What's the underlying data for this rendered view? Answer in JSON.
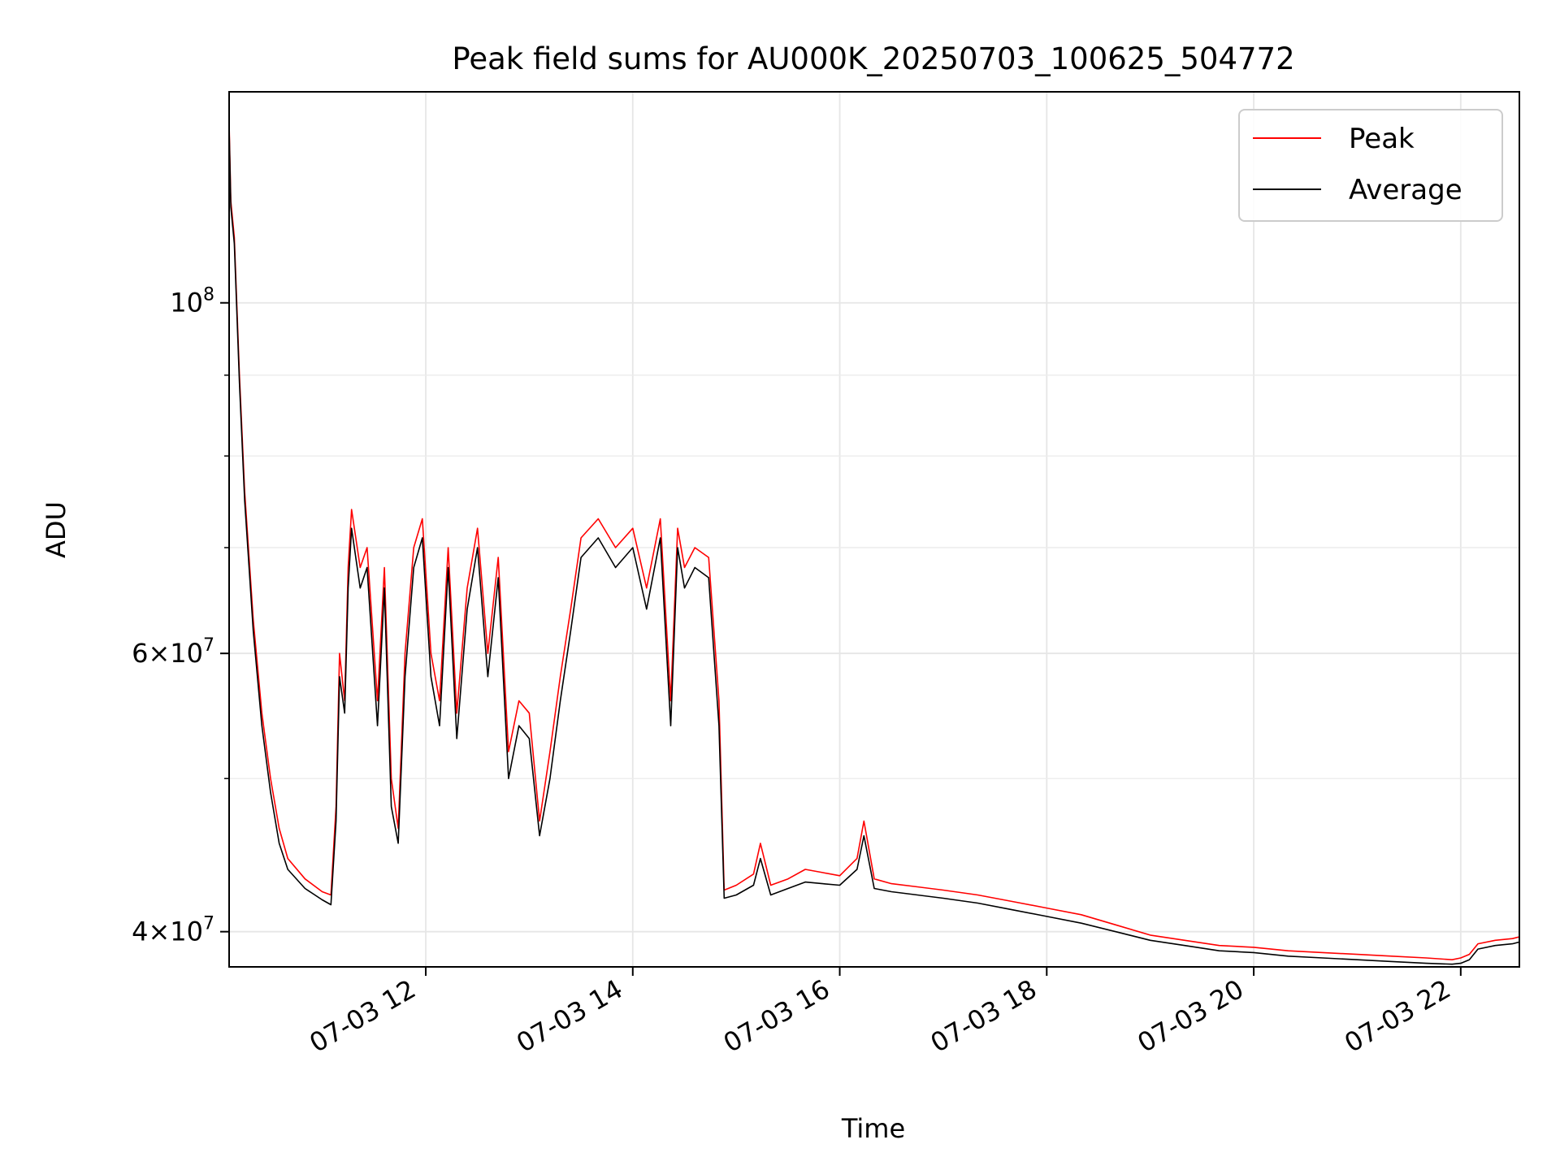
{
  "chart_data": {
    "type": "line",
    "title": "Peak field sums for AU000K_20250703_100625_504772",
    "xlabel": "Time",
    "ylabel": "ADU",
    "y_scale": "log",
    "ylim": [
      38000000,
      136000000
    ],
    "xlim": [
      "2025-07-03 10:06",
      "2025-07-03 22:34"
    ],
    "grid": true,
    "legend": "top-right",
    "x_ticks": [
      {
        "t": "2025-07-03 12:00",
        "label": "07-03 12"
      },
      {
        "t": "2025-07-03 14:00",
        "label": "07-03 14"
      },
      {
        "t": "2025-07-03 16:00",
        "label": "07-03 16"
      },
      {
        "t": "2025-07-03 18:00",
        "label": "07-03 18"
      },
      {
        "t": "2025-07-03 20:00",
        "label": "07-03 20"
      },
      {
        "t": "2025-07-03 22:00",
        "label": "07-03 22"
      }
    ],
    "y_ticks": [
      {
        "value": 40000000,
        "mant": "4",
        "exp": "7"
      },
      {
        "value": 60000000,
        "mant": "6",
        "exp": "7"
      },
      {
        "value": 100000000,
        "mant": "",
        "exp": "8"
      }
    ],
    "y_minor_ticks": [
      50000000,
      70000000,
      80000000,
      90000000
    ],
    "series": [
      {
        "name": "Peak",
        "color": "#ff0000",
        "points": [
          [
            "2025-07-03 10:06",
            130000000
          ],
          [
            "2025-07-03 10:07",
            116000000
          ],
          [
            "2025-07-03 10:09",
            110000000
          ],
          [
            "2025-07-03 10:12",
            90000000
          ],
          [
            "2025-07-03 10:15",
            76000000
          ],
          [
            "2025-07-03 10:20",
            63000000
          ],
          [
            "2025-07-03 10:25",
            55000000
          ],
          [
            "2025-07-03 10:30",
            50000000
          ],
          [
            "2025-07-03 10:35",
            46500000
          ],
          [
            "2025-07-03 10:40",
            44500000
          ],
          [
            "2025-07-03 10:50",
            43200000
          ],
          [
            "2025-07-03 11:00",
            42400000
          ],
          [
            "2025-07-03 11:05",
            42200000
          ],
          [
            "2025-07-03 11:08",
            48000000
          ],
          [
            "2025-07-03 11:10",
            60000000
          ],
          [
            "2025-07-03 11:13",
            56000000
          ],
          [
            "2025-07-03 11:15",
            68000000
          ],
          [
            "2025-07-03 11:17",
            74000000
          ],
          [
            "2025-07-03 11:22",
            68000000
          ],
          [
            "2025-07-03 11:26",
            70000000
          ],
          [
            "2025-07-03 11:32",
            56000000
          ],
          [
            "2025-07-03 11:36",
            68000000
          ],
          [
            "2025-07-03 11:40",
            50000000
          ],
          [
            "2025-07-03 11:44",
            46500000
          ],
          [
            "2025-07-03 11:48",
            60000000
          ],
          [
            "2025-07-03 11:53",
            70000000
          ],
          [
            "2025-07-03 11:58",
            73000000
          ],
          [
            "2025-07-03 12:03",
            60000000
          ],
          [
            "2025-07-03 12:08",
            56000000
          ],
          [
            "2025-07-03 12:13",
            70000000
          ],
          [
            "2025-07-03 12:18",
            55000000
          ],
          [
            "2025-07-03 12:24",
            66000000
          ],
          [
            "2025-07-03 12:30",
            72000000
          ],
          [
            "2025-07-03 12:36",
            60000000
          ],
          [
            "2025-07-03 12:42",
            69000000
          ],
          [
            "2025-07-03 12:48",
            52000000
          ],
          [
            "2025-07-03 12:54",
            56000000
          ],
          [
            "2025-07-03 13:00",
            55000000
          ],
          [
            "2025-07-03 13:06",
            47000000
          ],
          [
            "2025-07-03 13:12",
            52000000
          ],
          [
            "2025-07-03 13:18",
            58000000
          ],
          [
            "2025-07-03 13:24",
            64000000
          ],
          [
            "2025-07-03 13:30",
            71000000
          ],
          [
            "2025-07-03 13:40",
            73000000
          ],
          [
            "2025-07-03 13:50",
            70000000
          ],
          [
            "2025-07-03 14:00",
            72000000
          ],
          [
            "2025-07-03 14:08",
            66000000
          ],
          [
            "2025-07-03 14:16",
            73000000
          ],
          [
            "2025-07-03 14:22",
            56000000
          ],
          [
            "2025-07-03 14:26",
            72000000
          ],
          [
            "2025-07-03 14:30",
            68000000
          ],
          [
            "2025-07-03 14:36",
            70000000
          ],
          [
            "2025-07-03 14:44",
            69000000
          ],
          [
            "2025-07-03 14:50",
            56000000
          ],
          [
            "2025-07-03 14:53",
            42500000
          ],
          [
            "2025-07-03 15:00",
            42800000
          ],
          [
            "2025-07-03 15:10",
            43500000
          ],
          [
            "2025-07-03 15:14",
            45500000
          ],
          [
            "2025-07-03 15:20",
            42800000
          ],
          [
            "2025-07-03 15:30",
            43200000
          ],
          [
            "2025-07-03 15:40",
            43800000
          ],
          [
            "2025-07-03 15:50",
            43600000
          ],
          [
            "2025-07-03 16:00",
            43400000
          ],
          [
            "2025-07-03 16:10",
            44500000
          ],
          [
            "2025-07-03 16:14",
            47000000
          ],
          [
            "2025-07-03 16:20",
            43200000
          ],
          [
            "2025-07-03 16:30",
            42900000
          ],
          [
            "2025-07-03 16:45",
            42700000
          ],
          [
            "2025-07-03 17:00",
            42500000
          ],
          [
            "2025-07-03 17:20",
            42200000
          ],
          [
            "2025-07-03 17:40",
            41800000
          ],
          [
            "2025-07-03 18:00",
            41400000
          ],
          [
            "2025-07-03 18:20",
            41000000
          ],
          [
            "2025-07-03 18:40",
            40400000
          ],
          [
            "2025-07-03 19:00",
            39800000
          ],
          [
            "2025-07-03 19:20",
            39500000
          ],
          [
            "2025-07-03 19:40",
            39200000
          ],
          [
            "2025-07-03 20:00",
            39100000
          ],
          [
            "2025-07-03 20:20",
            38900000
          ],
          [
            "2025-07-03 20:40",
            38800000
          ],
          [
            "2025-07-03 21:00",
            38700000
          ],
          [
            "2025-07-03 21:20",
            38600000
          ],
          [
            "2025-07-03 21:40",
            38500000
          ],
          [
            "2025-07-03 21:55",
            38400000
          ],
          [
            "2025-07-03 22:00",
            38500000
          ],
          [
            "2025-07-03 22:05",
            38700000
          ],
          [
            "2025-07-03 22:10",
            39300000
          ],
          [
            "2025-07-03 22:20",
            39500000
          ],
          [
            "2025-07-03 22:30",
            39600000
          ],
          [
            "2025-07-03 22:34",
            39700000
          ]
        ]
      },
      {
        "name": "Average",
        "color": "#000000",
        "points": [
          [
            "2025-07-03 10:06",
            129000000
          ],
          [
            "2025-07-03 10:07",
            115000000
          ],
          [
            "2025-07-03 10:09",
            109000000
          ],
          [
            "2025-07-03 10:12",
            89000000
          ],
          [
            "2025-07-03 10:15",
            75000000
          ],
          [
            "2025-07-03 10:20",
            62000000
          ],
          [
            "2025-07-03 10:25",
            54000000
          ],
          [
            "2025-07-03 10:30",
            49000000
          ],
          [
            "2025-07-03 10:35",
            45500000
          ],
          [
            "2025-07-03 10:40",
            43800000
          ],
          [
            "2025-07-03 10:50",
            42600000
          ],
          [
            "2025-07-03 11:00",
            41900000
          ],
          [
            "2025-07-03 11:05",
            41600000
          ],
          [
            "2025-07-03 11:08",
            47000000
          ],
          [
            "2025-07-03 11:10",
            58000000
          ],
          [
            "2025-07-03 11:13",
            55000000
          ],
          [
            "2025-07-03 11:15",
            66000000
          ],
          [
            "2025-07-03 11:17",
            72000000
          ],
          [
            "2025-07-03 11:22",
            66000000
          ],
          [
            "2025-07-03 11:26",
            68000000
          ],
          [
            "2025-07-03 11:32",
            54000000
          ],
          [
            "2025-07-03 11:36",
            66000000
          ],
          [
            "2025-07-03 11:40",
            48000000
          ],
          [
            "2025-07-03 11:44",
            45500000
          ],
          [
            "2025-07-03 11:48",
            58000000
          ],
          [
            "2025-07-03 11:53",
            68000000
          ],
          [
            "2025-07-03 11:58",
            71000000
          ],
          [
            "2025-07-03 12:03",
            58000000
          ],
          [
            "2025-07-03 12:08",
            54000000
          ],
          [
            "2025-07-03 12:13",
            68000000
          ],
          [
            "2025-07-03 12:18",
            53000000
          ],
          [
            "2025-07-03 12:24",
            64000000
          ],
          [
            "2025-07-03 12:30",
            70000000
          ],
          [
            "2025-07-03 12:36",
            58000000
          ],
          [
            "2025-07-03 12:42",
            67000000
          ],
          [
            "2025-07-03 12:48",
            50000000
          ],
          [
            "2025-07-03 12:54",
            54000000
          ],
          [
            "2025-07-03 13:00",
            53000000
          ],
          [
            "2025-07-03 13:06",
            46000000
          ],
          [
            "2025-07-03 13:12",
            50000000
          ],
          [
            "2025-07-03 13:18",
            56000000
          ],
          [
            "2025-07-03 13:24",
            62000000
          ],
          [
            "2025-07-03 13:30",
            69000000
          ],
          [
            "2025-07-03 13:40",
            71000000
          ],
          [
            "2025-07-03 13:50",
            68000000
          ],
          [
            "2025-07-03 14:00",
            70000000
          ],
          [
            "2025-07-03 14:08",
            64000000
          ],
          [
            "2025-07-03 14:16",
            71000000
          ],
          [
            "2025-07-03 14:22",
            54000000
          ],
          [
            "2025-07-03 14:26",
            70000000
          ],
          [
            "2025-07-03 14:30",
            66000000
          ],
          [
            "2025-07-03 14:36",
            68000000
          ],
          [
            "2025-07-03 14:44",
            67000000
          ],
          [
            "2025-07-03 14:50",
            54000000
          ],
          [
            "2025-07-03 14:53",
            42000000
          ],
          [
            "2025-07-03 15:00",
            42200000
          ],
          [
            "2025-07-03 15:10",
            42800000
          ],
          [
            "2025-07-03 15:14",
            44500000
          ],
          [
            "2025-07-03 15:20",
            42200000
          ],
          [
            "2025-07-03 15:30",
            42600000
          ],
          [
            "2025-07-03 15:40",
            43000000
          ],
          [
            "2025-07-03 15:50",
            42900000
          ],
          [
            "2025-07-03 16:00",
            42800000
          ],
          [
            "2025-07-03 16:10",
            43800000
          ],
          [
            "2025-07-03 16:14",
            46000000
          ],
          [
            "2025-07-03 16:20",
            42600000
          ],
          [
            "2025-07-03 16:30",
            42400000
          ],
          [
            "2025-07-03 16:45",
            42200000
          ],
          [
            "2025-07-03 17:00",
            42000000
          ],
          [
            "2025-07-03 17:20",
            41700000
          ],
          [
            "2025-07-03 17:40",
            41300000
          ],
          [
            "2025-07-03 18:00",
            40900000
          ],
          [
            "2025-07-03 18:20",
            40500000
          ],
          [
            "2025-07-03 18:40",
            40000000
          ],
          [
            "2025-07-03 19:00",
            39500000
          ],
          [
            "2025-07-03 19:20",
            39200000
          ],
          [
            "2025-07-03 19:40",
            38900000
          ],
          [
            "2025-07-03 20:00",
            38800000
          ],
          [
            "2025-07-03 20:20",
            38600000
          ],
          [
            "2025-07-03 20:40",
            38500000
          ],
          [
            "2025-07-03 21:00",
            38400000
          ],
          [
            "2025-07-03 21:20",
            38300000
          ],
          [
            "2025-07-03 21:40",
            38200000
          ],
          [
            "2025-07-03 21:55",
            38150000
          ],
          [
            "2025-07-03 22:00",
            38200000
          ],
          [
            "2025-07-03 22:05",
            38400000
          ],
          [
            "2025-07-03 22:10",
            39000000
          ],
          [
            "2025-07-03 22:20",
            39200000
          ],
          [
            "2025-07-03 22:30",
            39300000
          ],
          [
            "2025-07-03 22:34",
            39400000
          ]
        ]
      }
    ]
  }
}
